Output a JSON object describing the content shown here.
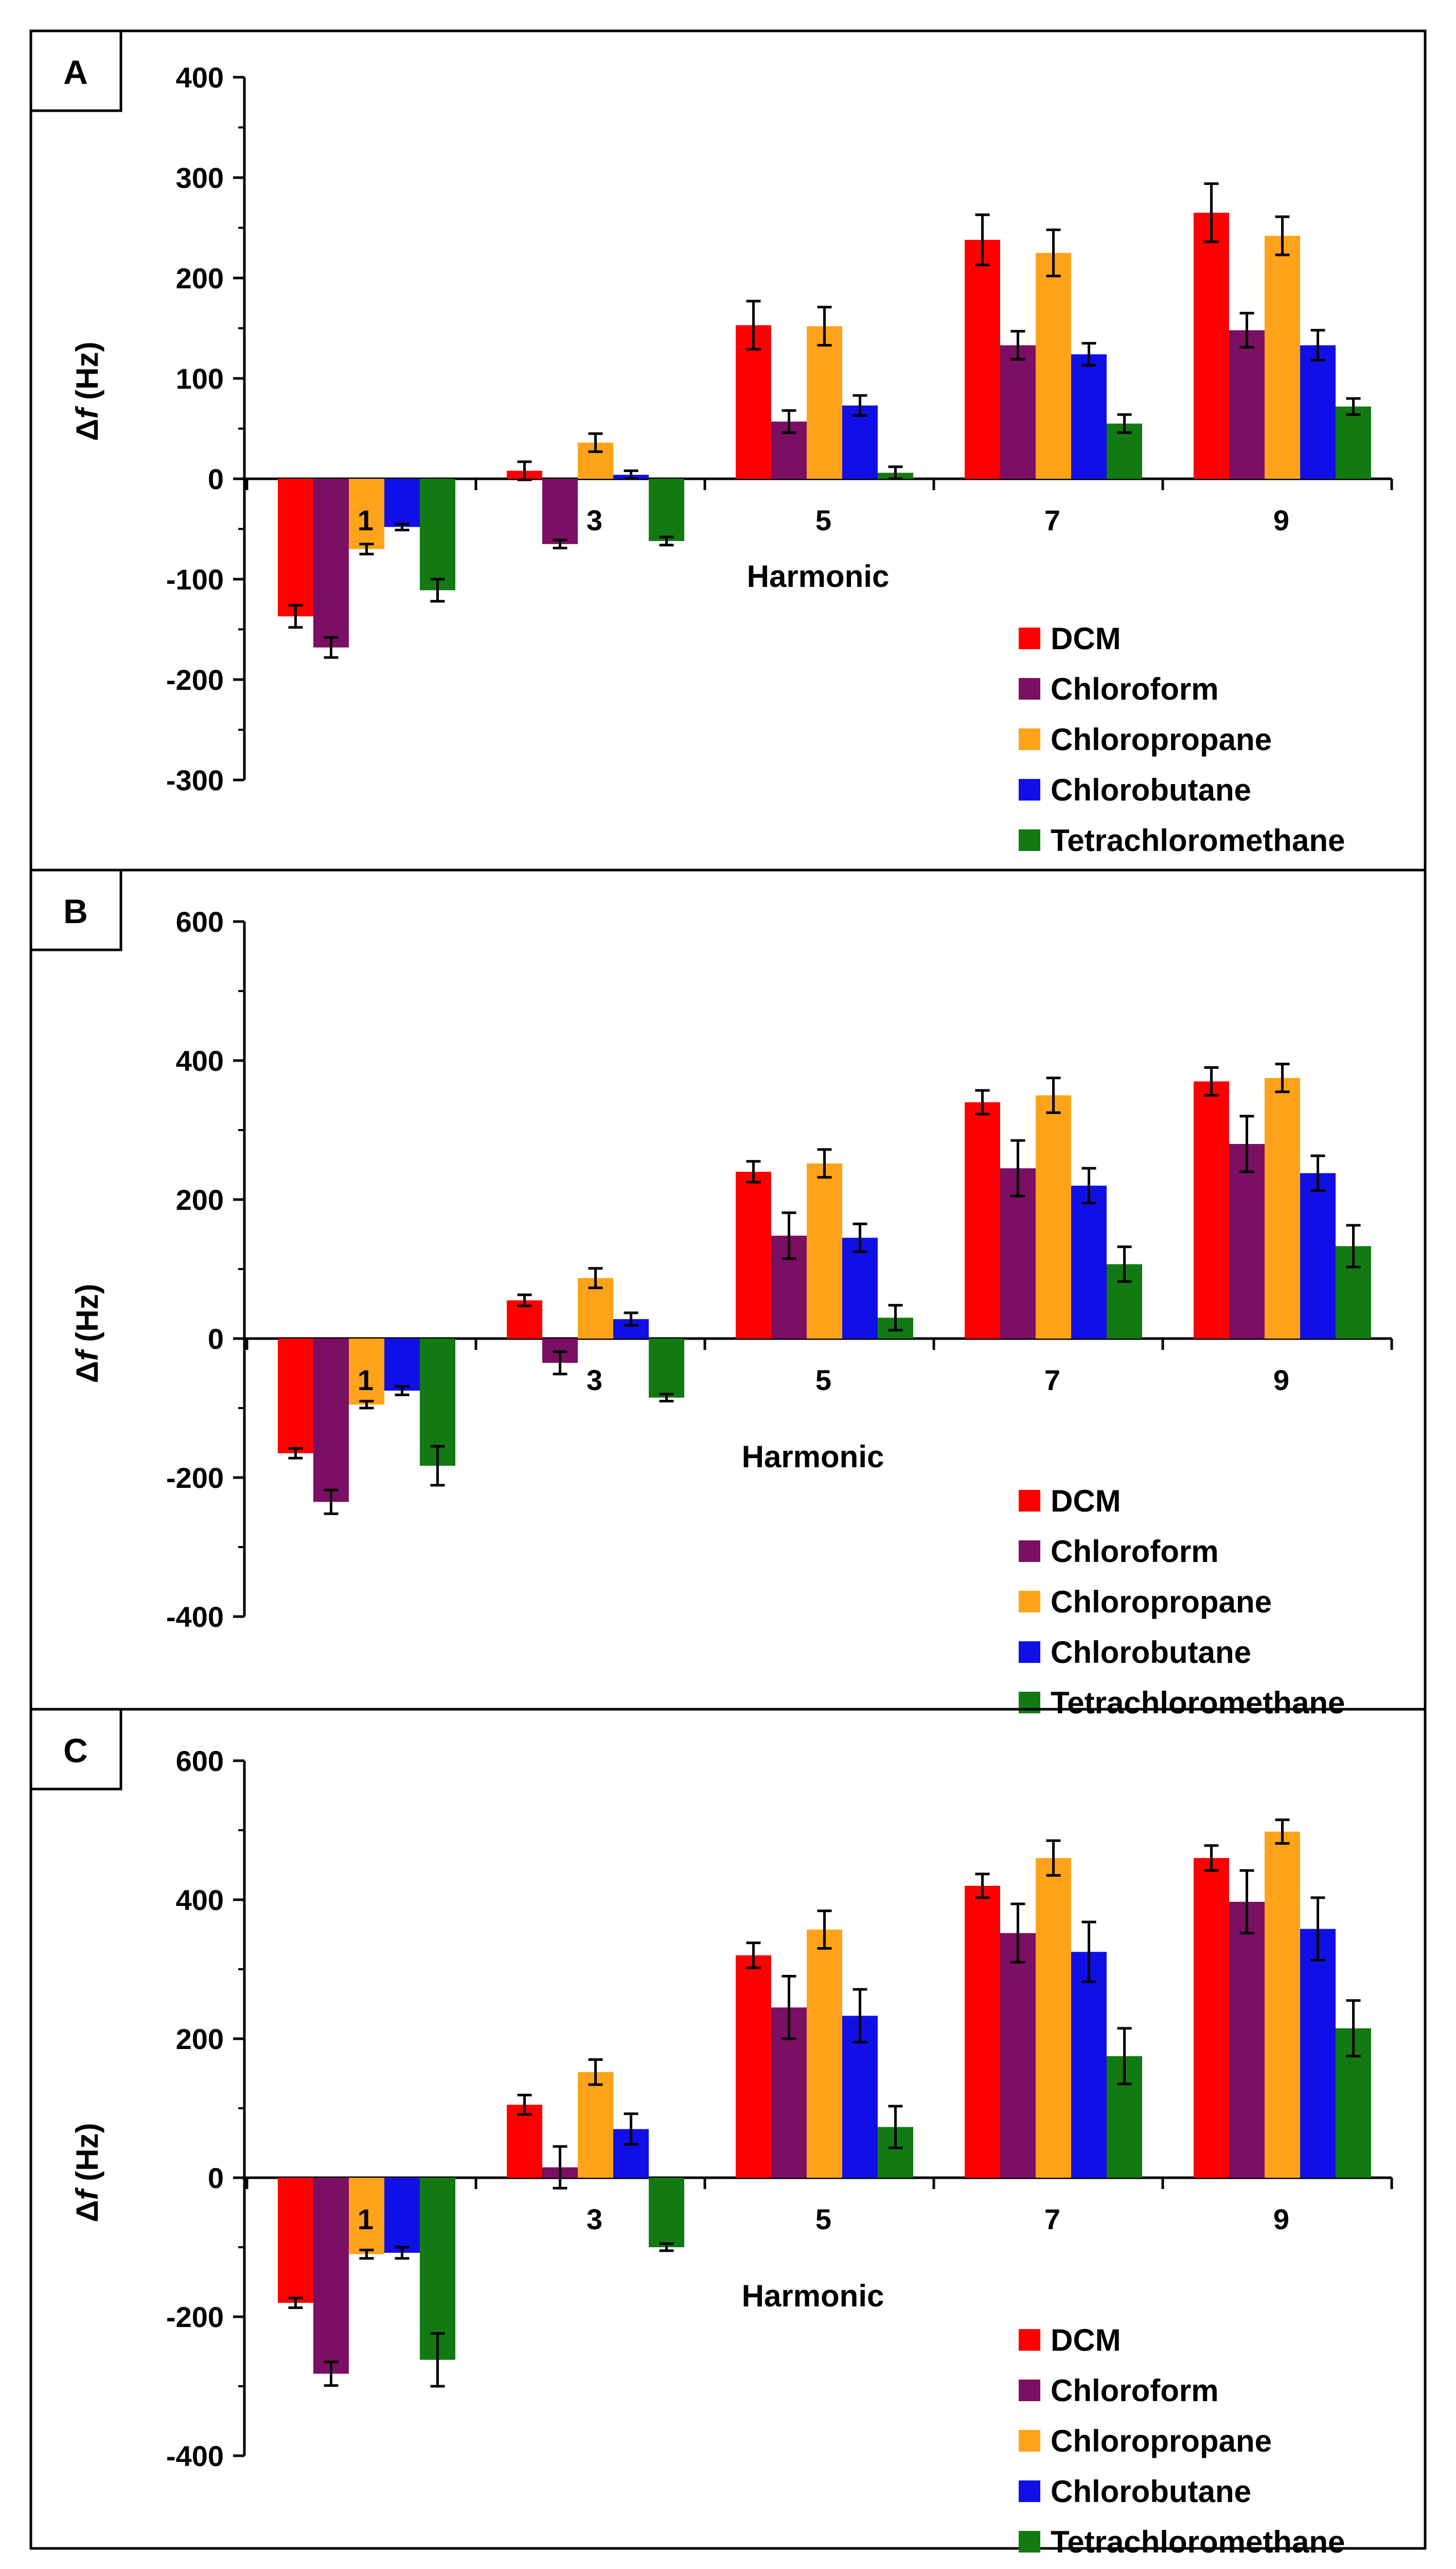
{
  "series_colors": {
    "DCM": "#ff0000",
    "Chloroform": "#7b0f63",
    "Chloropropane": "#ffa31a",
    "Chlorobutane": "#1010e6",
    "Tetrachloromethane": "#137a13"
  },
  "chart_data": [
    {
      "type": "bar",
      "panel_label": "A",
      "categories": [
        "1",
        "3",
        "5",
        "7",
        "9"
      ],
      "xlabel": "Harmonic",
      "ylabel_prefix": "Δ",
      "ylabel_var": "f",
      "ylabel_unit": " (Hz)",
      "ylim": [
        -300,
        400
      ],
      "yticks": [
        -300,
        -200,
        -100,
        0,
        100,
        200,
        300,
        400
      ],
      "ytick_labels": [
        "-300",
        "-200",
        "-100",
        "0",
        "100",
        "200",
        "300",
        "400"
      ],
      "legend_position": "bottom-right",
      "series": [
        {
          "name": "DCM",
          "values": [
            -137,
            8,
            153,
            238,
            265
          ],
          "errors": [
            11,
            9,
            24,
            25,
            29
          ]
        },
        {
          "name": "Chloroform",
          "values": [
            -168,
            -65,
            57,
            133,
            148
          ],
          "errors": [
            10,
            4,
            11,
            14,
            17
          ]
        },
        {
          "name": "Chloropropane",
          "values": [
            -70,
            36,
            152,
            225,
            242
          ],
          "errors": [
            5,
            9,
            19,
            23,
            19
          ]
        },
        {
          "name": "Chlorobutane",
          "values": [
            -48,
            4,
            73,
            124,
            133
          ],
          "errors": [
            3,
            4,
            10,
            11,
            15
          ]
        },
        {
          "name": "Tetrachloromethane",
          "values": [
            -111,
            -62,
            6,
            55,
            72
          ],
          "errors": [
            11,
            4,
            6,
            9,
            8
          ]
        }
      ]
    },
    {
      "type": "bar",
      "panel_label": "B",
      "categories": [
        "1",
        "3",
        "5",
        "7",
        "9"
      ],
      "xlabel": "Harmonic",
      "ylabel_prefix": "Δ",
      "ylabel_var": "f",
      "ylabel_unit": " (Hz)",
      "ylim": [
        -400,
        600
      ],
      "yticks": [
        -400,
        -200,
        0,
        200,
        400,
        600
      ],
      "ytick_labels": [
        "-400",
        "-200",
        "0",
        "200",
        "400",
        "600"
      ],
      "legend_position": "bottom-right",
      "series": [
        {
          "name": "DCM",
          "values": [
            -165,
            55,
            240,
            340,
            370
          ],
          "errors": [
            7,
            8,
            15,
            17,
            20
          ]
        },
        {
          "name": "Chloroform",
          "values": [
            -235,
            -35,
            148,
            245,
            280
          ],
          "errors": [
            17,
            16,
            33,
            40,
            40
          ]
        },
        {
          "name": "Chloropropane",
          "values": [
            -95,
            87,
            252,
            350,
            375
          ],
          "errors": [
            5,
            14,
            20,
            25,
            20
          ]
        },
        {
          "name": "Chlorobutane",
          "values": [
            -75,
            28,
            145,
            220,
            238
          ],
          "errors": [
            6,
            9,
            20,
            25,
            25
          ]
        },
        {
          "name": "Tetrachloromethane",
          "values": [
            -183,
            -85,
            30,
            107,
            133
          ],
          "errors": [
            28,
            5,
            18,
            25,
            30
          ]
        }
      ]
    },
    {
      "type": "bar",
      "panel_label": "C",
      "categories": [
        "1",
        "3",
        "5",
        "7",
        "9"
      ],
      "xlabel": "Harmonic",
      "ylabel_prefix": "Δ",
      "ylabel_var": "f",
      "ylabel_unit": " (Hz)",
      "ylim": [
        -400,
        600
      ],
      "yticks": [
        -400,
        -200,
        0,
        200,
        400,
        600
      ],
      "ytick_labels": [
        "-400",
        "-200",
        "0",
        "200",
        "400",
        "600"
      ],
      "legend_position": "bottom-right",
      "series": [
        {
          "name": "DCM",
          "values": [
            -180,
            105,
            320,
            420,
            460
          ],
          "errors": [
            7,
            14,
            18,
            17,
            18
          ]
        },
        {
          "name": "Chloroform",
          "values": [
            -282,
            15,
            245,
            352,
            397
          ],
          "errors": [
            17,
            30,
            45,
            42,
            45
          ]
        },
        {
          "name": "Chloropropane",
          "values": [
            -110,
            152,
            357,
            460,
            498
          ],
          "errors": [
            6,
            18,
            27,
            25,
            17
          ]
        },
        {
          "name": "Chlorobutane",
          "values": [
            -108,
            70,
            233,
            325,
            358
          ],
          "errors": [
            8,
            22,
            38,
            43,
            45
          ]
        },
        {
          "name": "Tetrachloromethane",
          "values": [
            -262,
            -100,
            73,
            175,
            215
          ],
          "errors": [
            38,
            5,
            30,
            40,
            40
          ]
        }
      ]
    }
  ]
}
